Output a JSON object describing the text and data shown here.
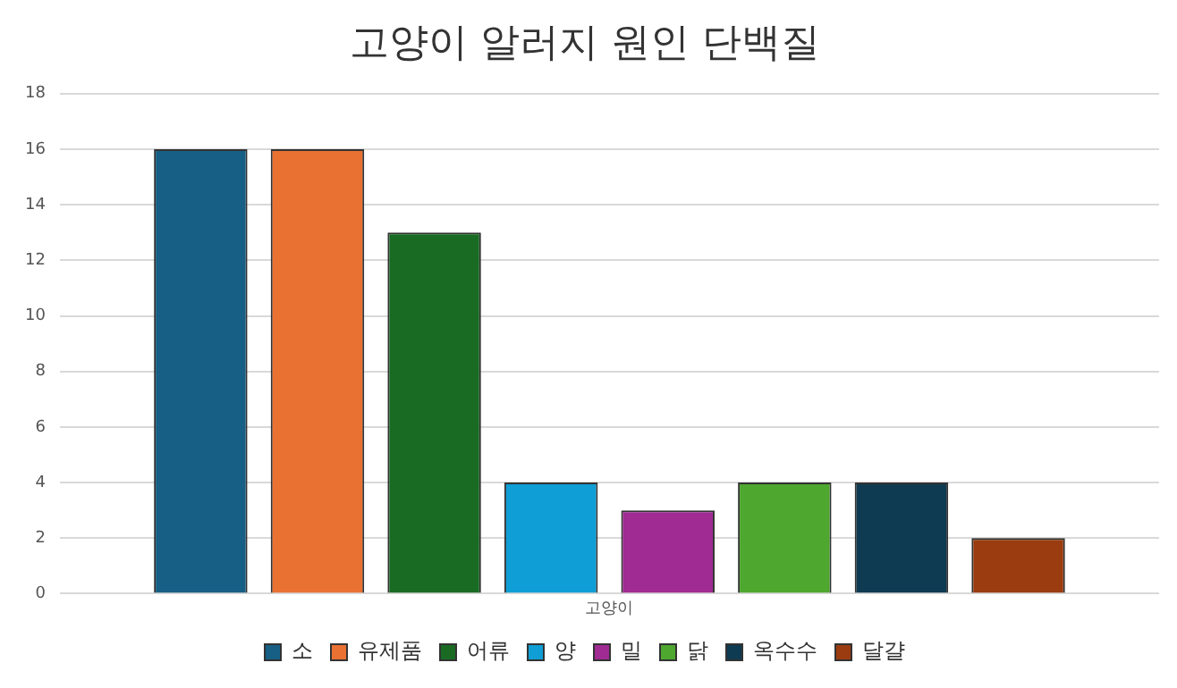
{
  "chart_data": {
    "type": "bar",
    "title": "고양이 알러지 원인 단백질",
    "categories": [
      "고양이"
    ],
    "series": [
      {
        "name": "소",
        "color": "#175f84",
        "values": [
          16
        ]
      },
      {
        "name": "유제품",
        "color": "#e97132",
        "values": [
          16
        ]
      },
      {
        "name": "어류",
        "color": "#196b24",
        "values": [
          13
        ]
      },
      {
        "name": "양",
        "color": "#0f9ed5",
        "values": [
          4
        ]
      },
      {
        "name": "밀",
        "color": "#a02b93",
        "values": [
          3
        ]
      },
      {
        "name": "닭",
        "color": "#4ea72e",
        "values": [
          4
        ]
      },
      {
        "name": "옥수수",
        "color": "#0e3a52",
        "values": [
          4
        ]
      },
      {
        "name": "달걀",
        "color": "#9a3c10",
        "values": [
          2
        ]
      }
    ],
    "ylim": [
      0,
      18
    ],
    "yticks": [
      0,
      2,
      4,
      6,
      8,
      10,
      12,
      14,
      16,
      18
    ],
    "grid": "y",
    "legend": "bottom"
  }
}
